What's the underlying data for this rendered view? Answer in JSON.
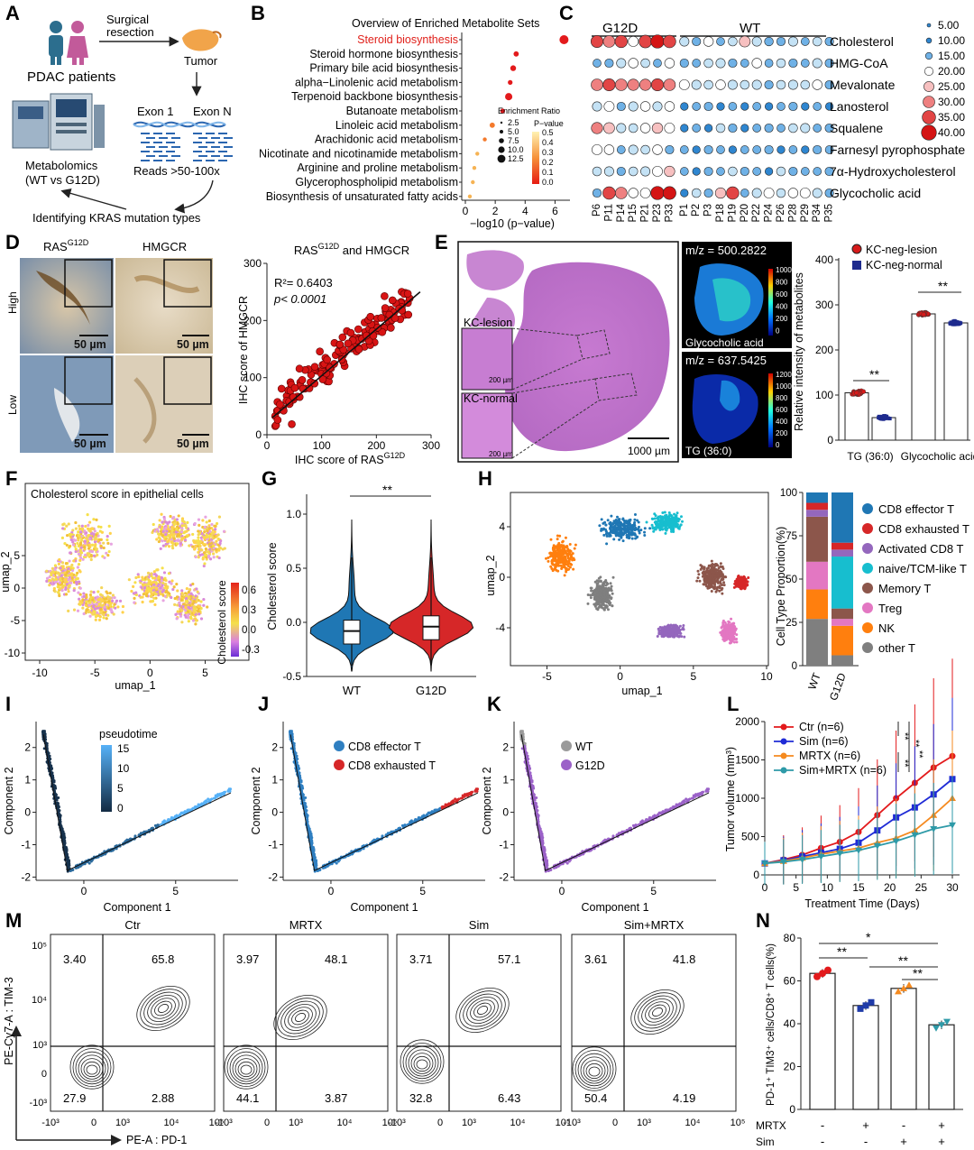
{
  "panel_letters": [
    "A",
    "B",
    "C",
    "D",
    "E",
    "F",
    "G",
    "H",
    "I",
    "J",
    "K",
    "L",
    "M",
    "N"
  ],
  "panelA": {
    "patients": "PDAC patients",
    "surgery": "Surgical",
    "surgery2": "resection",
    "tumor": "Tumor",
    "exon1": "Exon 1",
    "exonN": "Exon N",
    "reads": "Reads >50-100x",
    "metab1": "Metabolomics",
    "metab2": "(WT vs G12D)",
    "identify": "Identifying KRAS mutation types"
  },
  "panelB": {
    "title": "Overview of Enriched Metabolite Sets",
    "xlabel": "−log10 (p−value)",
    "xticks": [
      "0",
      "2",
      "4",
      "6"
    ],
    "legend_size_title": "Enrichment Ratio",
    "size_labels": [
      "2.5",
      "5.0",
      "7.5",
      "10.0",
      "12.5"
    ],
    "legend_p_title": "P−value",
    "p_labels": [
      "0.5",
      "0.4",
      "0.3",
      "0.2",
      "0.1",
      "0.0"
    ],
    "highlight_color": "#e0201a"
  },
  "panelC": {
    "group1": "G12D",
    "group2": "WT",
    "rows": [
      "Cholesterol",
      "HMG-CoA",
      "Mevalonate",
      "Lanosterol",
      "Squalene",
      "Farnesyl pyrophosphate",
      "7α-Hydroxycholesterol",
      "Glycocholic acid"
    ],
    "samples": [
      "P6",
      "P11",
      "P14",
      "P15",
      "P21",
      "P23",
      "P33",
      "P1",
      "P2",
      "P3",
      "P18",
      "P19",
      "P20",
      "P22",
      "P24",
      "P26",
      "P28",
      "P29",
      "P34",
      "P35"
    ],
    "legend": [
      "5.00",
      "10.00",
      "15.00",
      "20.00",
      "25.00",
      "30.00",
      "35.00",
      "40.00"
    ]
  },
  "panelD": {
    "ras_html": "RAS",
    "ras_sup": "G12D",
    "hmgcr": "HMGCR",
    "high": "High",
    "low": "Low",
    "scalebar": "50 µm",
    "plot_title_a": "RAS",
    "plot_title_sup": "G12D",
    "plot_title_b": " and HMGCR",
    "r2": "R²= 0.6403",
    "p": "p< 0.0001",
    "ylabel": "IHC score of HMGCR",
    "xlabel_a": "IHC score of RAS",
    "xlabel_sup": "G12D",
    "xticks": [
      "0",
      "100",
      "200",
      "300"
    ],
    "yticks": [
      "0",
      "100",
      "200",
      "300"
    ]
  },
  "panelE": {
    "kc_lesion": "KC-lesion",
    "kc_normal": "KC-normal",
    "scale200": "200 µm",
    "scale1000": "1000 µm",
    "mz1": "m/z = 500.2822",
    "mz1_name": "Glycocholic acid",
    "mz1_ticks": [
      "1000",
      "800",
      "600",
      "400",
      "200",
      "0"
    ],
    "mz2": "m/z = 637.5425",
    "mz2_name": "TG (36:0)",
    "mz2_ticks": [
      "1200",
      "1000",
      "800",
      "600",
      "400",
      "200",
      "0"
    ],
    "legend1": "KC-neg-lesion",
    "legend2": "KC-neg-normal",
    "ylabel": "Relative intensity of metabolites",
    "cats": [
      "TG (36:0)",
      "Glycocholic acid"
    ],
    "yticks": [
      "0",
      "100",
      "200",
      "300",
      "400"
    ],
    "sig": "**"
  },
  "panelF": {
    "title": "Cholesterol score in epithelial cells",
    "xlabel": "umap_1",
    "ylabel": "umap_2",
    "cbar_label": "Cholesterol score",
    "cbar_ticks": [
      "0.6",
      "0.3",
      "0.0",
      "-0.3"
    ],
    "xticks": [
      "-10",
      "-5",
      "0",
      "5"
    ],
    "yticks": [
      "5",
      "0",
      "-5",
      "-10"
    ]
  },
  "panelG": {
    "ylabel": "Cholesterol score",
    "cats": [
      "WT",
      "G12D"
    ],
    "yticks": [
      "1.0",
      "0.5",
      "0.0",
      "-0.5"
    ],
    "sig": "**"
  },
  "panelH": {
    "xlabel": "umap_1",
    "ylabel": "umap_2",
    "xticks": [
      "-5",
      "0",
      "5",
      "10"
    ],
    "yticks": [
      "4",
      "0",
      "-4"
    ],
    "bar_ylabel": "Cell Type Proportion(%)",
    "bar_yticks": [
      "100",
      "75",
      "50",
      "25",
      "0"
    ],
    "bar_cats": [
      "WT",
      "G12D"
    ],
    "legend": [
      {
        "name": "CD8 effector T",
        "color": "#1f77b4"
      },
      {
        "name": "CD8 exhausted T",
        "color": "#d62728"
      },
      {
        "name": "Activated CD8 T",
        "color": "#9467bd"
      },
      {
        "name": "naive/TCM-like T",
        "color": "#17becf"
      },
      {
        "name": "Memory T",
        "color": "#8c564b"
      },
      {
        "name": "Treg",
        "color": "#e377c2"
      },
      {
        "name": "NK",
        "color": "#ff7f0e"
      },
      {
        "name": "other T",
        "color": "#7f7f7f"
      }
    ]
  },
  "panelI": {
    "legend_title": "pseudotime",
    "ticks": [
      "15",
      "10",
      "5",
      "0"
    ],
    "xlabel": "Component 1",
    "ylabel": "Component 2"
  },
  "panelJ": {
    "legend": [
      "CD8 effector T",
      "CD8 exhausted T"
    ],
    "xlabel": "Component 1",
    "ylabel": "Component 2"
  },
  "panelK": {
    "legend": [
      "WT",
      "G12D"
    ],
    "xlabel": "Component 1",
    "ylabel": "Component 2"
  },
  "traj_xticks": [
    "0",
    "5"
  ],
  "traj_yticks": [
    "2",
    "1",
    "0",
    "-1",
    "-2"
  ],
  "panelL": {
    "xlabel": "Treatment Time (Days)",
    "ylabel": "Tumor volume (mm³)",
    "xticks": [
      "0",
      "5",
      "10",
      "15",
      "20",
      "25",
      "30"
    ],
    "yticks": [
      "2000",
      "1500",
      "1000",
      "500",
      "0"
    ],
    "legend": [
      "Ctr (n=6)",
      "Sim (n=6)",
      "MRTX (n=6)",
      "Sim+MRTX (n=6)"
    ],
    "sig": "**"
  },
  "panelM": {
    "titles": [
      "Ctr",
      "MRTX",
      "Sim",
      "Sim+MRTX"
    ],
    "quads": [
      [
        "3.40",
        "65.8",
        "27.9",
        "2.88"
      ],
      [
        "3.97",
        "48.1",
        "44.1",
        "3.87"
      ],
      [
        "3.71",
        "57.1",
        "32.8",
        "6.43"
      ],
      [
        "3.61",
        "41.8",
        "50.4",
        "4.19"
      ]
    ],
    "ylabel": "PE-Cy7-A : TIM-3",
    "xlabel": "PE-A : PD-1",
    "ticks_y": [
      "10⁵",
      "10⁴",
      "10³",
      "0",
      "-10³"
    ],
    "ticks_x": [
      "-10³",
      "0",
      "10³",
      "10⁴",
      "10⁵"
    ]
  },
  "panelN": {
    "ylabel": "PD-1⁺ TIM3⁺ cells/CD8⁺ T cells(%)",
    "yticks": [
      "80",
      "60",
      "40",
      "20",
      "0"
    ],
    "row1": "MRTX",
    "row2": "Sim",
    "row1_vals": [
      "-",
      "+",
      "-",
      "+"
    ],
    "row2_vals": [
      "-",
      "-",
      "+",
      "+"
    ],
    "sig1": "*",
    "sig2": "**"
  },
  "chart_data": [
    {
      "type": "scatter",
      "panel": "B",
      "title": "Overview of Enriched Metabolite Sets",
      "xlabel": "−log10 (p−value)",
      "categories": [
        "Steroid biosynthesis",
        "Steroid hormone biosynthesis",
        "Primary bile acid biosynthesis",
        "alpha−Linolenic acid metabolism",
        "Terpenoid backbone biosynthesis",
        "Butanoate metabolism",
        "Linoleic acid metabolism",
        "Arachidonic acid metabolism",
        "Nicotinate and nicotinamide metabolism",
        "Arginine and proline metabolism",
        "Glycerophospholipid metabolism",
        "Biosynthesis of unsaturated fatty acids"
      ],
      "values": [
        6.6,
        3.4,
        3.2,
        3.0,
        2.9,
        2.5,
        1.8,
        1.3,
        0.8,
        0.6,
        0.5,
        0.3
      ],
      "pvalues": [
        0.0,
        0.02,
        0.03,
        0.04,
        0.05,
        0.08,
        0.15,
        0.25,
        0.4,
        0.45,
        0.48,
        0.5
      ],
      "enrichment": [
        12.5,
        5.0,
        6.0,
        4.0,
        9.0,
        4.0,
        5.0,
        2.5,
        2.5,
        2.5,
        2.5,
        2.5
      ],
      "xlim": [
        0,
        7
      ]
    },
    {
      "type": "scatter",
      "panel": "D",
      "title": "RASG12D and HMGCR",
      "xlabel": "IHC score of RASG12D",
      "ylabel": "IHC score of HMGCR",
      "xlim": [
        0,
        300
      ],
      "ylim": [
        0,
        300
      ],
      "fit": {
        "x": [
          10,
          280
        ],
        "y": [
          30,
          250
        ]
      }
    },
    {
      "type": "bar",
      "panel": "E",
      "categories": [
        "TG (36:0)",
        "Glycocholic acid"
      ],
      "series": [
        {
          "name": "KC-neg-lesion",
          "values": [
            105,
            280
          ]
        },
        {
          "name": "KC-neg-normal",
          "values": [
            50,
            260
          ]
        }
      ],
      "ylim": [
        0,
        400
      ]
    },
    {
      "type": "bar",
      "panel": "H",
      "categories": [
        "WT",
        "G12D"
      ],
      "series": [
        {
          "name": "other T",
          "values": [
            27,
            6
          ]
        },
        {
          "name": "NK",
          "values": [
            17,
            17
          ]
        },
        {
          "name": "Treg",
          "values": [
            16,
            4
          ]
        },
        {
          "name": "Memory T",
          "values": [
            26,
            6
          ]
        },
        {
          "name": "naive/TCM-like T",
          "values": [
            0,
            30
          ]
        },
        {
          "name": "Activated CD8 T",
          "values": [
            4,
            4
          ]
        },
        {
          "name": "CD8 exhausted T",
          "values": [
            4,
            4
          ]
        },
        {
          "name": "CD8 effector T",
          "values": [
            6,
            29
          ]
        }
      ],
      "ylim": [
        0,
        100
      ]
    },
    {
      "type": "line",
      "panel": "L",
      "xlabel": "Treatment Time (Days)",
      "ylabel": "Tumor volume (mm³)",
      "x": [
        0,
        3,
        6,
        9,
        12,
        15,
        18,
        21,
        24,
        27,
        30
      ],
      "series": [
        {
          "name": "Ctr (n=6)",
          "values": [
            150,
            200,
            260,
            350,
            430,
            560,
            780,
            1000,
            1200,
            1400,
            1550
          ]
        },
        {
          "name": "Sim (n=6)",
          "values": [
            150,
            190,
            240,
            290,
            340,
            420,
            580,
            750,
            880,
            1050,
            1250
          ]
        },
        {
          "name": "MRTX (n=6)",
          "values": [
            150,
            180,
            220,
            270,
            310,
            350,
            420,
            480,
            580,
            780,
            1000
          ]
        },
        {
          "name": "Sim+MRTX (n=6)",
          "values": [
            150,
            170,
            200,
            240,
            280,
            320,
            380,
            440,
            520,
            600,
            650
          ]
        }
      ],
      "xlim": [
        0,
        30
      ],
      "ylim": [
        0,
        2000
      ]
    },
    {
      "type": "bar",
      "panel": "N",
      "ylabel": "PD-1+ TIM3+ cells/CD8+ T cells(%)",
      "categories": [
        "Ctr",
        "MRTX",
        "Sim",
        "Sim+MRTX"
      ],
      "values": [
        63.5,
        48.5,
        56.5,
        39.5
      ],
      "ylim": [
        0,
        80
      ]
    }
  ]
}
